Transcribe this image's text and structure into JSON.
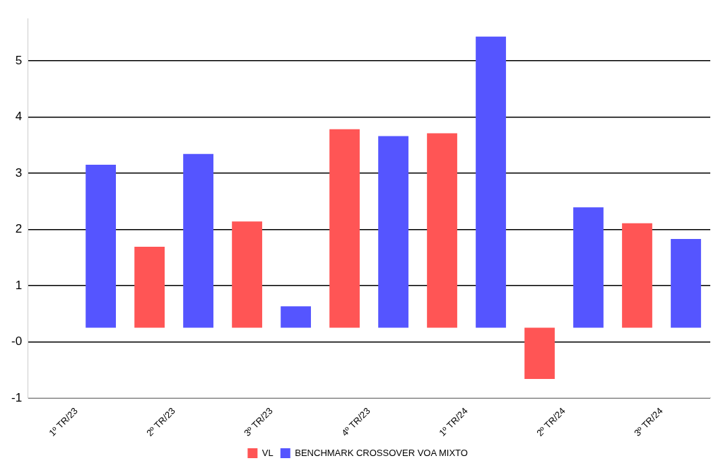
{
  "chart_data": {
    "type": "bar",
    "categories": [
      "1º TR/23",
      "2º TR/23",
      "3º TR/23",
      "4º TR/23",
      "1º TR/24",
      "2º TR/24",
      "3º TR/24"
    ],
    "series": [
      {
        "name": "VL",
        "color": "#ff5555",
        "values": [
          0,
          1.44,
          1.89,
          3.53,
          3.46,
          -0.91,
          1.86
        ]
      },
      {
        "name": "BENCHMARK CROSSOVER VOA MIXTO",
        "color": "#5555ff",
        "values": [
          2.9,
          3.09,
          0.38,
          3.41,
          5.18,
          2.14,
          1.58
        ]
      }
    ],
    "ylim": [
      -1.25,
      5.5
    ],
    "yticks": [
      {
        "value": -1.25,
        "label": "-1"
      },
      {
        "value": -0.25,
        "label": "-0"
      },
      {
        "value": 0.75,
        "label": "1"
      },
      {
        "value": 1.75,
        "label": "2"
      },
      {
        "value": 2.75,
        "label": "3"
      },
      {
        "value": 3.75,
        "label": "4"
      },
      {
        "value": 4.75,
        "label": "5"
      }
    ],
    "grid": "y",
    "legend": "bottom"
  }
}
